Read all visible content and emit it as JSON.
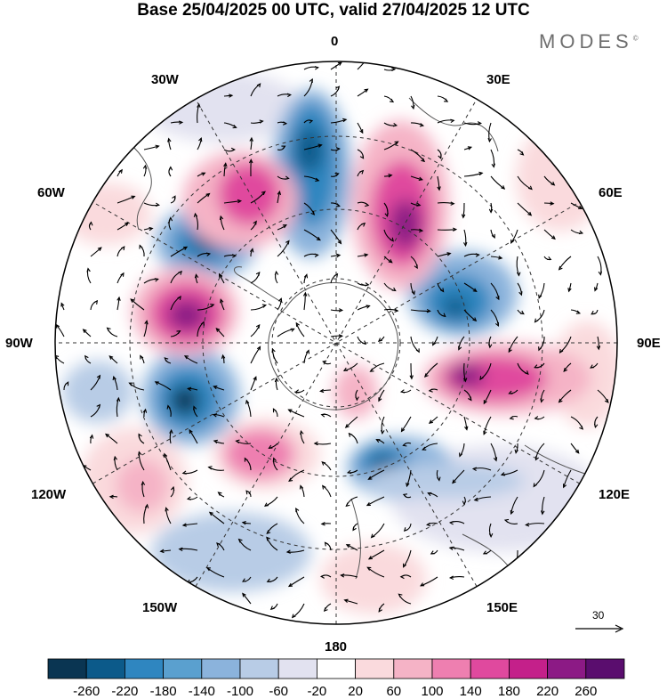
{
  "header": {
    "title": "Base 25/04/2025 00 UTC, valid 27/04/2025 12 UTC",
    "brand": "MODES"
  },
  "map": {
    "projection": "south polar stereographic",
    "longitude_labels": {
      "top": "0",
      "top_right": "30E",
      "right_upper": "60E",
      "right": "90E",
      "right_lower": "120E",
      "bottom_right": "150E",
      "bottom": "180",
      "bottom_left": "150W",
      "left_lower": "120W",
      "left": "90W",
      "left_upper": "60W",
      "top_left": "30W"
    },
    "vector_scale": "30"
  },
  "colorbar": {
    "colors": [
      "#0a3552",
      "#0c5a8a",
      "#2f86c0",
      "#5aa0cf",
      "#8bb3dc",
      "#b8cce6",
      "#e2e2f0",
      "#ffffff",
      "#fadadd",
      "#f5b3c6",
      "#ee7fb0",
      "#e0499e",
      "#c4208a",
      "#8c1a85",
      "#5a0d6e"
    ],
    "ticks": [
      "-260",
      "-220",
      "-180",
      "-140",
      "-100",
      "-60",
      "-20",
      "20",
      "60",
      "100",
      "140",
      "180",
      "220",
      "260"
    ]
  }
}
